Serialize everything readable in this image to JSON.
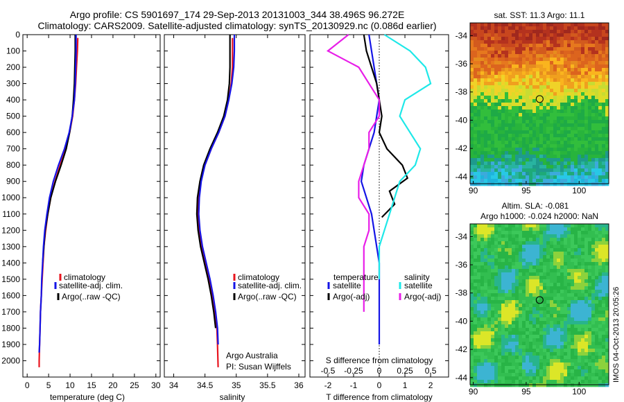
{
  "header": {
    "title_line1": "Argo profile: CS 5901697_174 29-Sep-2013 20131003_344 38.496S 96.272E",
    "title_line2": "Climatology: CARS2009. Satellite-adjusted climatology: synTS_20130929.nc (0.086d earlier)"
  },
  "colors": {
    "climatology": "#e8141e",
    "satellite_adj": "#1414e6",
    "argo": "#000000",
    "salinity_satellite": "#1ee8e8",
    "salinity_argo": "#e81ee8"
  },
  "chart_data": [
    {
      "type": "line",
      "panel": "temperature",
      "xlabel": "temperature (deg C)",
      "ylabel": "",
      "xlim": [
        -1,
        31
      ],
      "ylim": [
        2100,
        0
      ],
      "x_ticks": [
        "0",
        "5",
        "10",
        "15",
        "20",
        "25",
        "30"
      ],
      "y_ticks": [
        "0",
        "100",
        "200",
        "300",
        "400",
        "500",
        "600",
        "700",
        "800",
        "900",
        "1000",
        "1100",
        "1200",
        "1300",
        "1400",
        "1500",
        "1600",
        "1700",
        "1800",
        "1900",
        "2000"
      ],
      "legend_position": "lower-middle",
      "legend": [
        "climatology",
        "satellite-adj. clim.",
        "Argo(..raw -QC)"
      ],
      "series": [
        {
          "name": "climatology",
          "color_key": "climatology",
          "x": [
            11.8,
            11.7,
            11.5,
            11.3,
            11.0,
            10.6,
            9.9,
            9.0,
            7.7,
            6.5,
            5.5,
            4.8,
            4.3,
            3.9,
            3.7,
            3.5,
            3.3,
            3.1,
            3.0,
            2.9,
            2.8,
            2.8
          ],
          "y": [
            20,
            100,
            200,
            300,
            400,
            500,
            600,
            700,
            800,
            900,
            1000,
            1100,
            1200,
            1300,
            1400,
            1500,
            1600,
            1700,
            1800,
            1900,
            2000,
            2040
          ]
        },
        {
          "name": "Argo(..raw -QC)",
          "color_key": "argo",
          "x": [
            11.2,
            11.2,
            11.1,
            11.0,
            10.8,
            10.5,
            9.9,
            9.1,
            7.9,
            6.6,
            5.5,
            4.8,
            4.2,
            3.9,
            3.6
          ],
          "y": [
            0,
            100,
            200,
            300,
            400,
            500,
            600,
            700,
            800,
            900,
            1000,
            1100,
            1200,
            1300,
            1400
          ]
        },
        {
          "name": "satellite-adj. clim.",
          "color_key": "satellite_adj",
          "x": [
            11.4,
            11.4,
            11.3,
            11.2,
            11.0,
            10.5,
            9.8,
            8.7,
            7.3,
            6.1,
            5.2,
            4.6,
            4.1,
            3.8,
            3.6,
            3.4,
            3.3,
            3.1,
            3.0,
            2.9,
            2.8
          ],
          "y": [
            0,
            100,
            200,
            300,
            400,
            500,
            600,
            700,
            800,
            900,
            1000,
            1100,
            1200,
            1300,
            1400,
            1500,
            1600,
            1700,
            1800,
            1900,
            1950
          ]
        }
      ]
    },
    {
      "type": "line",
      "panel": "salinity",
      "xlabel": "salinity",
      "xlim": [
        33.85,
        36.1
      ],
      "ylim": [
        2100,
        0
      ],
      "x_ticks": [
        "34",
        "34.5",
        "35",
        "35.5",
        "36"
      ],
      "legend_position": "lower-middle",
      "legend": [
        "climatology",
        "satellite-adj. clim.",
        "Argo(..raw -QC)"
      ],
      "annotation": [
        "Argo Australia",
        "PI: Susan Wijffels"
      ],
      "series": [
        {
          "name": "climatology",
          "color_key": "climatology",
          "x": [
            34.94,
            34.94,
            34.94,
            34.92,
            34.88,
            34.82,
            34.72,
            34.6,
            34.5,
            34.43,
            34.4,
            34.39,
            34.41,
            34.45,
            34.5,
            34.56,
            34.62,
            34.66,
            34.69,
            34.7,
            34.71
          ],
          "y": [
            20,
            100,
            200,
            300,
            400,
            500,
            600,
            700,
            800,
            900,
            1000,
            1100,
            1200,
            1300,
            1400,
            1500,
            1600,
            1700,
            1800,
            1900,
            2040
          ]
        },
        {
          "name": "Argo(..raw -QC)",
          "color_key": "argo",
          "x": [
            34.9,
            34.9,
            34.9,
            34.89,
            34.86,
            34.8,
            34.7,
            34.58,
            34.48,
            34.42,
            34.38,
            34.37,
            34.39,
            34.43,
            34.49,
            34.55,
            34.6,
            34.64,
            34.67
          ],
          "y": [
            0,
            100,
            200,
            300,
            400,
            500,
            600,
            700,
            800,
            900,
            1000,
            1100,
            1200,
            1300,
            1400,
            1500,
            1600,
            1700,
            1800
          ]
        },
        {
          "name": "satellite-adj. clim.",
          "color_key": "satellite_adj",
          "x": [
            34.97,
            34.97,
            34.96,
            34.93,
            34.88,
            34.82,
            34.72,
            34.6,
            34.5,
            34.44,
            34.41,
            34.4,
            34.42,
            34.46,
            34.52,
            34.58,
            34.63,
            34.67,
            34.7,
            34.71
          ],
          "y": [
            0,
            100,
            200,
            300,
            400,
            500,
            600,
            700,
            800,
            900,
            1000,
            1100,
            1200,
            1300,
            1400,
            1500,
            1600,
            1700,
            1800,
            1900
          ]
        }
      ]
    },
    {
      "type": "line",
      "panel": "difference",
      "xlabel": "T difference from climatology",
      "top_label": "S difference from climatology",
      "xlim": [
        -2.7,
        2.7
      ],
      "ylim": [
        2100,
        0
      ],
      "x_ticks": [
        "-2",
        "-1",
        "0",
        "1",
        "2"
      ],
      "top_ticks": [
        "-0.5",
        "-0.25",
        "0",
        "0.25",
        "0.5"
      ],
      "legend_position": "lower-middle",
      "legend_headers": [
        "temperature",
        "salinity"
      ],
      "legend": [
        "satellite",
        "Argo(-adj)",
        "satellite",
        "Argo(-adj)"
      ],
      "series": [
        {
          "name": "satellite",
          "group": "temperature",
          "color_key": "satellite_adj",
          "x": [
            -0.4,
            -0.3,
            -0.2,
            -0.1,
            0.0,
            -0.1,
            -0.2,
            -0.4,
            -0.6,
            -0.7,
            -0.5,
            -0.3,
            -0.2,
            -0.1,
            0.0,
            0.0,
            0.0,
            0.0,
            0.0,
            0.0
          ],
          "y": [
            0,
            100,
            200,
            300,
            400,
            500,
            600,
            700,
            800,
            900,
            1000,
            1100,
            1200,
            1300,
            1400,
            1500,
            1600,
            1700,
            1800,
            1900
          ]
        },
        {
          "name": "Argo(-adj)",
          "group": "temperature",
          "color_key": "argo",
          "x": [
            -0.6,
            -0.5,
            -0.3,
            -0.1,
            0.0,
            0.1,
            0.0,
            0.3,
            0.9,
            1.1,
            0.4,
            0.6,
            0.1
          ],
          "y": [
            0,
            100,
            200,
            300,
            400,
            500,
            600,
            700,
            800,
            880,
            960,
            1040,
            1120
          ]
        },
        {
          "name": "satellite",
          "group": "salinity",
          "color_key": "salinity_satellite",
          "x": [
            0.05,
            0.3,
            0.45,
            0.5,
            0.25,
            0.2,
            0.3,
            0.4,
            0.35,
            0.2,
            0.15,
            0.1,
            0.05,
            0.0,
            0.0,
            0.0
          ],
          "y": [
            0,
            100,
            200,
            300,
            400,
            500,
            600,
            700,
            800,
            900,
            1000,
            1100,
            1200,
            1300,
            1400,
            1500
          ]
        },
        {
          "name": "Argo(-adj)",
          "group": "salinity",
          "color_key": "salinity_argo",
          "x": [
            -0.3,
            -0.5,
            -0.2,
            -0.1,
            0.0,
            0.0,
            -0.1,
            -0.1,
            -0.15,
            -0.2,
            -0.2,
            -0.1,
            -0.1,
            -0.15,
            -0.15,
            -0.15,
            -0.15,
            -0.15
          ],
          "y": [
            0,
            100,
            200,
            300,
            400,
            500,
            600,
            700,
            800,
            900,
            1000,
            1100,
            1200,
            1300,
            1400,
            1500,
            1600,
            1700
          ]
        }
      ]
    },
    {
      "type": "heatmap",
      "panel": "sst_map",
      "title": "sat. SST: 11.3 Argo: 11.1",
      "x_ticks": [
        "90",
        "95",
        "100"
      ],
      "y_ticks": [
        "-34",
        "-36",
        "-38",
        "-40",
        "-42",
        "-44"
      ],
      "xlim": [
        89.7,
        102.8
      ],
      "ylim": [
        -44.5,
        -33.1
      ],
      "marker": {
        "lon": 96.272,
        "lat": -38.496
      }
    },
    {
      "type": "heatmap",
      "panel": "sla_map",
      "title_line1": "Altim. SLA: -0.081",
      "title_line2": "Argo h1000: -0.024 h2000: NaN",
      "x_ticks": [
        "90",
        "95",
        "100"
      ],
      "y_ticks": [
        "-34",
        "-36",
        "-38",
        "-40",
        "-42",
        "-44"
      ],
      "xlim": [
        89.7,
        102.8
      ],
      "ylim": [
        -44.5,
        -33.1
      ],
      "marker": {
        "lon": 96.272,
        "lat": -38.496
      }
    }
  ],
  "watermark": "IMOS 04-Oct-2013 20:05:26"
}
